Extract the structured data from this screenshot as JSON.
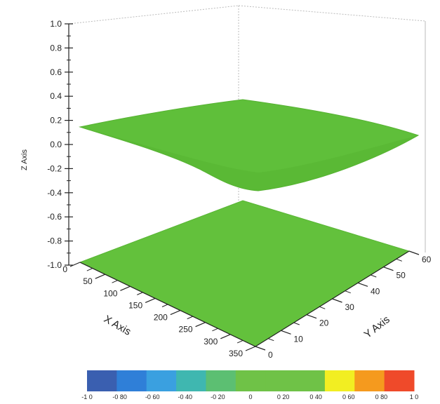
{
  "chart_data": {
    "type": "surface3d",
    "title": "",
    "x_axis": {
      "label": "X Axis",
      "range": [
        0,
        350
      ],
      "ticks": [
        0,
        50,
        100,
        150,
        200,
        250,
        300,
        350
      ]
    },
    "y_axis": {
      "label": "Y Axis",
      "range": [
        0,
        60
      ],
      "ticks": [
        0,
        10,
        20,
        30,
        40,
        50,
        60
      ]
    },
    "z_axis": {
      "label": "Z Axis",
      "range": [
        -1.0,
        1.0
      ],
      "ticks": [
        "1.0",
        "0.8",
        "0.6",
        "0.4",
        "0.2",
        "0.0",
        "-0.2",
        "-0.4",
        "-0.6",
        "-0.8",
        "-1.0"
      ]
    },
    "surfaces": [
      {
        "id": "upper",
        "z_approx": 0.1,
        "corner_z": {
          "x0_y0": 0.2,
          "x350_y0": -0.28,
          "x350_y60": 0.13,
          "x0_y60": 0.4
        },
        "color": "#5fbf3a"
      },
      {
        "id": "floor",
        "z_approx": -1.0,
        "color": "#63c13c"
      }
    ],
    "colorbar": {
      "tick_labels": [
        "-1 0",
        "-0 80",
        "-0 60",
        "-0 40",
        "-0 20",
        "0",
        "0 20",
        "0 40",
        "0 60",
        "0 80",
        "1 0"
      ],
      "colors": [
        "#3a5fb0",
        "#2f7fd8",
        "#3aa0e0",
        "#3fb7b0",
        "#5cbf72",
        "#6fc247",
        "#6fc247",
        "#6fc247",
        "#f2ee22",
        "#f59a1e",
        "#ef4a2a"
      ]
    },
    "grid": false
  }
}
